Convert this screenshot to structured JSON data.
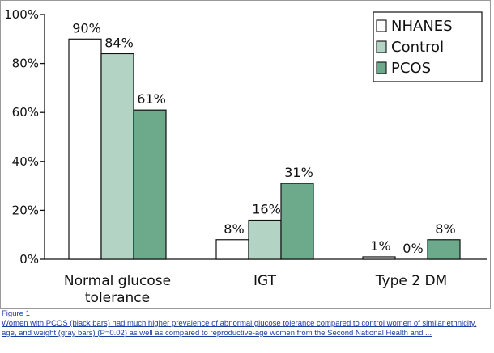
{
  "chart_data": {
    "type": "bar",
    "categories": [
      "Normal glucose\ntolerance",
      "IGT",
      "Type 2 DM"
    ],
    "series": [
      {
        "name": "NHANES",
        "values": [
          90,
          8,
          1
        ],
        "color": "#ffffff"
      },
      {
        "name": "Control",
        "values": [
          84,
          16,
          0
        ],
        "color": "#b3d3c4"
      },
      {
        "name": "PCOS",
        "values": [
          61,
          31,
          8
        ],
        "color": "#6daa8c"
      }
    ],
    "value_labels": [
      [
        "90%",
        "8%",
        "1%"
      ],
      [
        "84%",
        "16%",
        "0%"
      ],
      [
        "61%",
        "31%",
        "8%"
      ]
    ],
    "ylim": [
      0,
      100
    ],
    "yticks": [
      0,
      20,
      40,
      60,
      80,
      100
    ],
    "ytick_labels": [
      "0%",
      "20%",
      "40%",
      "60%",
      "80%",
      "100%"
    ],
    "legend_position": "top-right",
    "grid": false
  },
  "caption": {
    "figure_label": "Figure 1",
    "text": "Women with PCOS (black bars) had much higher prevalence of abnormal glucose tolerance compared to control women of similar ethnicity, age, and weight (gray bars) (P=0.02) as well as compared to reproductive-age women from the Second National Health and ..."
  }
}
